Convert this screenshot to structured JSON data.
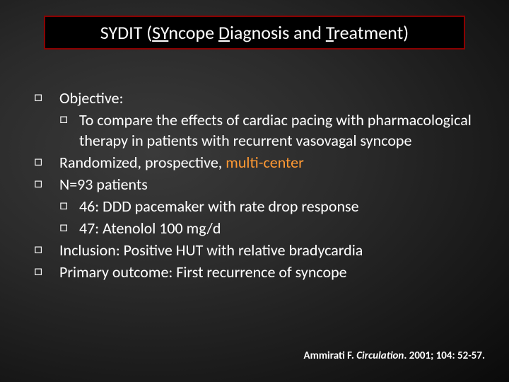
{
  "title": {
    "prefix": "SYDIT  (",
    "u1": "SY",
    "t1": "ncope ",
    "u2": "D",
    "t2": "iagnosis and ",
    "u3": "T",
    "t3": "reatment)"
  },
  "bullets": {
    "b1": "Objective:",
    "b1a": "To compare the effects of cardiac pacing  with pharmacological therapy in patients with  recurrent vasovagal syncope",
    "b2_pre": "Randomized, prospective, ",
    "b2_hi": "multi-center",
    "b3": "N=93 patients",
    "b3a": "46: DDD pacemaker with rate drop response",
    "b3b": "47: Atenolol 100 mg/d",
    "b4": "Inclusion: Positive HUT with relative bradycardia",
    "b5": "Primary outcome: First recurrence of syncope"
  },
  "citation": {
    "author": "Ammirati F. ",
    "journal": "Circulation",
    "rest": ". 2001; 104: 52-57."
  },
  "marker_square": "□"
}
